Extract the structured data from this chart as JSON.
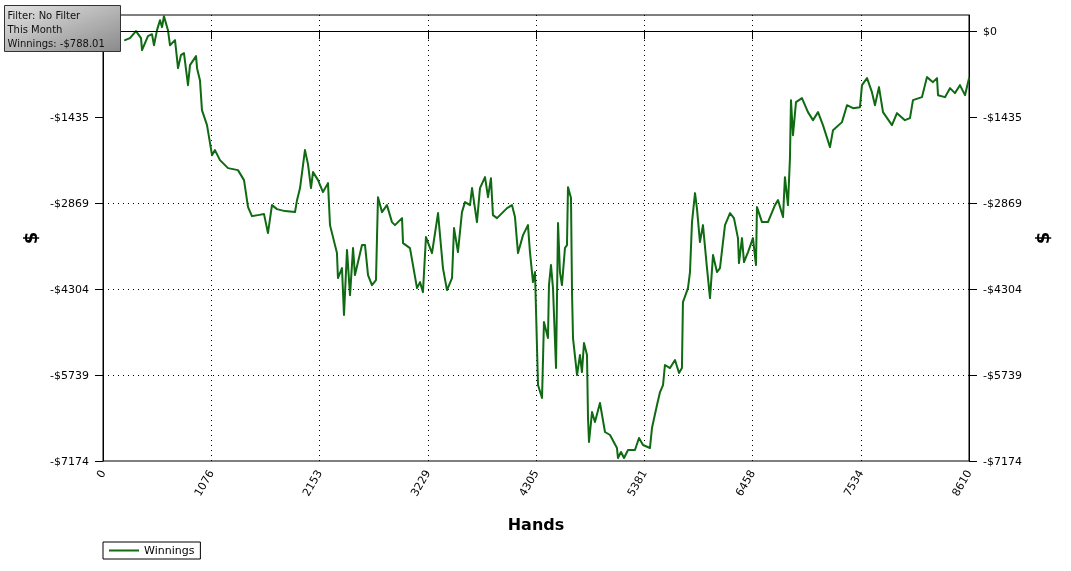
{
  "chart_data": {
    "type": "line",
    "xlabel": "Hands",
    "ylabel": "$",
    "y2label": "$",
    "annotations": [
      "Filter: No Filter",
      "This Month",
      "Winnings: -$788.01"
    ],
    "xlim": [
      0,
      8610
    ],
    "xticks": [
      0,
      1076,
      2153,
      3229,
      4305,
      5381,
      6458,
      7534,
      8610
    ],
    "ylim": [
      -7174,
      270
    ],
    "yticks": [
      {
        "value": 0,
        "label": null
      },
      {
        "value": -1435,
        "label": "-$1435"
      },
      {
        "value": -2869,
        "label": "-$2869"
      },
      {
        "value": -4304,
        "label": "-$4304"
      },
      {
        "value": -5739,
        "label": "-$5739"
      },
      {
        "value": -7174,
        "label": "-$7174"
      }
    ],
    "y2lim": [
      -7174,
      270
    ],
    "y2ticks": [
      {
        "value": 0,
        "label": "$0"
      },
      {
        "value": -1435,
        "label": "-$1435"
      },
      {
        "value": -2869,
        "label": "-$2869"
      },
      {
        "value": -4304,
        "label": "-$4304"
      },
      {
        "value": -5739,
        "label": "-$5739"
      },
      {
        "value": -7174,
        "label": "-$7174"
      }
    ],
    "grid": true,
    "legend": "bottom left",
    "marker": "none",
    "line_style": "solid",
    "ref_lines": [
      {
        "axis": "y",
        "value": 0,
        "color": "#000000"
      }
    ],
    "series": [
      {
        "name": "Winnings",
        "color": "#0f6a12",
        "x": [
          219,
          268,
          328,
          378,
          388,
          447,
          487,
          507,
          537,
          567,
          587,
          606,
          646,
          666,
          716,
          746,
          775,
          805,
          845,
          865,
          925,
          935,
          964,
          984,
          1034,
          1084,
          1113,
          1163,
          1243,
          1342,
          1402,
          1442,
          1481,
          1541,
          1601,
          1640,
          1680,
          1730,
          1809,
          1909,
          1929,
          1959,
          2008,
          2038,
          2068,
          2088,
          2138,
          2187,
          2237,
          2257,
          2326,
          2336,
          2376,
          2396,
          2426,
          2456,
          2486,
          2505,
          2575,
          2605,
          2635,
          2674,
          2714,
          2734,
          2774,
          2823,
          2873,
          2903,
          2973,
          2983,
          3052,
          3122,
          3152,
          3181,
          3211,
          3271,
          3331,
          3380,
          3420,
          3470,
          3490,
          3529,
          3569,
          3599,
          3649,
          3669,
          3718,
          3748,
          3798,
          3828,
          3857,
          3877,
          3917,
          4017,
          4066,
          4096,
          4126,
          4176,
          4225,
          4245,
          4275,
          4295,
          4325,
          4365,
          4384,
          4424,
          4434,
          4454,
          4474,
          4504,
          4524,
          4543,
          4563,
          4593,
          4613,
          4623,
          4653,
          4663,
          4673,
          4713,
          4742,
          4762,
          4782,
          4812,
          4822,
          4832,
          4862,
          4891,
          4941,
          4991,
          5041,
          5110,
          5120,
          5150,
          5180,
          5220,
          5289,
          5329,
          5369,
          5438,
          5458,
          5508,
          5538,
          5568,
          5587,
          5637,
          5687,
          5727,
          5756,
          5766,
          5816,
          5836,
          5856,
          5886,
          5905,
          5935,
          5965,
          6005,
          6035,
          6065,
          6104,
          6134,
          6184,
          6234,
          6273,
          6313,
          6323,
          6353,
          6373,
          6413,
          6462,
          6492,
          6502,
          6552,
          6611,
          6681,
          6711,
          6761,
          6780,
          6810,
          6830,
          6840,
          6860,
          6890,
          6949,
          7009,
          7059,
          7109,
          7158,
          7228,
          7258,
          7347,
          7397,
          7457,
          7526,
          7546,
          7596,
          7645,
          7675,
          7715,
          7755,
          7844,
          7894,
          7973,
          8023,
          8053,
          8142,
          8192,
          8252,
          8292,
          8302,
          8371,
          8421,
          8470,
          8520,
          8570,
          8610
        ],
        "values": [
          -150,
          -117,
          0,
          -117,
          -317,
          -83,
          -50,
          -234,
          17,
          184,
          67,
          250,
          17,
          -234,
          -150,
          -617,
          -400,
          -367,
          -901,
          -567,
          -417,
          -617,
          -818,
          -1318,
          -1568,
          -2069,
          -1985,
          -2152,
          -2286,
          -2319,
          -2486,
          -2936,
          -3087,
          -3070,
          -3053,
          -3370,
          -2903,
          -2970,
          -3003,
          -3020,
          -2820,
          -2619,
          -1985,
          -2219,
          -2619,
          -2352,
          -2486,
          -2686,
          -2536,
          -3237,
          -3704,
          -4121,
          -3954,
          -4738,
          -3654,
          -4405,
          -3620,
          -4071,
          -3570,
          -3570,
          -4071,
          -4238,
          -4154,
          -2770,
          -3020,
          -2903,
          -3187,
          -3237,
          -3120,
          -3537,
          -3620,
          -4288,
          -4188,
          -4355,
          -3437,
          -3704,
          -3036,
          -3954,
          -4321,
          -4121,
          -3287,
          -3687,
          -3020,
          -2853,
          -2903,
          -2619,
          -3187,
          -2619,
          -2436,
          -2770,
          -2453,
          -3070,
          -3120,
          -2953,
          -2903,
          -3103,
          -3704,
          -3404,
          -3237,
          -3687,
          -4188,
          -4021,
          -5906,
          -6123,
          -4855,
          -5122,
          -4238,
          -3904,
          -4288,
          -5623,
          -3203,
          -4021,
          -4238,
          -3620,
          -3570,
          -2603,
          -2786,
          -4355,
          -5122,
          -5739,
          -5406,
          -5689,
          -5205,
          -5406,
          -6457,
          -6857,
          -6357,
          -6523,
          -6206,
          -6690,
          -6740,
          -6957,
          -7124,
          -7024,
          -7124,
          -6991,
          -6991,
          -6790,
          -6907,
          -6957,
          -6624,
          -6240,
          -6023,
          -5906,
          -5572,
          -5623,
          -5489,
          -5706,
          -5623,
          -4521,
          -4288,
          -4021,
          -3187,
          -2703,
          -2953,
          -3520,
          -3237,
          -3954,
          -4455,
          -3737,
          -4021,
          -3954,
          -3237,
          -3036,
          -3120,
          -3454,
          -3871,
          -3454,
          -3854,
          -3687,
          -3454,
          -3904,
          -2936,
          -3187,
          -3187,
          -2903,
          -2820,
          -3103,
          -2436,
          -2903,
          -2119,
          -1151,
          -1735,
          -1185,
          -1118,
          -1351,
          -1485,
          -1351,
          -1568,
          -1935,
          -1652,
          -1518,
          -1235,
          -1285,
          -1268,
          -901,
          -784,
          -1018,
          -1235,
          -934,
          -1351,
          -1568,
          -1368,
          -1485,
          -1452,
          -1151,
          -1101,
          -767,
          -851,
          -784,
          -1068,
          -1101,
          -951,
          -1034,
          -901,
          -1068,
          -788
        ]
      }
    ]
  }
}
